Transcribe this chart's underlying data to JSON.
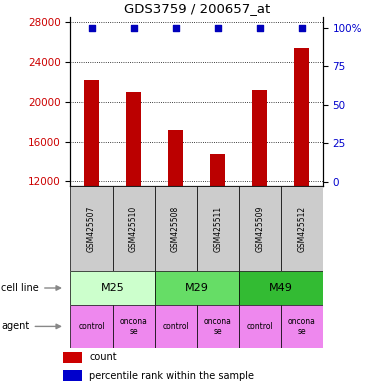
{
  "title": "GDS3759 / 200657_at",
  "samples": [
    "GSM425507",
    "GSM425510",
    "GSM425508",
    "GSM425511",
    "GSM425509",
    "GSM425512"
  ],
  "counts": [
    22200,
    21000,
    17200,
    14700,
    21200,
    25400
  ],
  "percentile_ranks": [
    100,
    100,
    100,
    100,
    100,
    100
  ],
  "ylim_left": [
    11500,
    28500
  ],
  "ylim_right": [
    -3,
    107
  ],
  "yticks_left": [
    12000,
    16000,
    20000,
    24000,
    28000
  ],
  "yticks_right": [
    0,
    25,
    50,
    75,
    100
  ],
  "bar_color": "#bb0000",
  "dot_color": "#0000bb",
  "cell_line_colors": {
    "M25": "#ccffcc",
    "M29": "#66dd66",
    "M49": "#33bb33"
  },
  "agent_color": "#ee88ee",
  "sample_box_color": "#cccccc",
  "bar_color_legend": "#cc0000",
  "dot_color_legend": "#0000cc",
  "ytick_left_color": "#cc0000",
  "ytick_right_color": "#0000cc",
  "bar_width": 0.35,
  "cell_line_spans": [
    [
      "M25",
      0,
      2
    ],
    [
      "M29",
      2,
      4
    ],
    [
      "M49",
      4,
      6
    ]
  ],
  "agent_labels": [
    "control",
    "oncona\nse",
    "control",
    "oncona\nse",
    "control",
    "oncona\nse"
  ]
}
